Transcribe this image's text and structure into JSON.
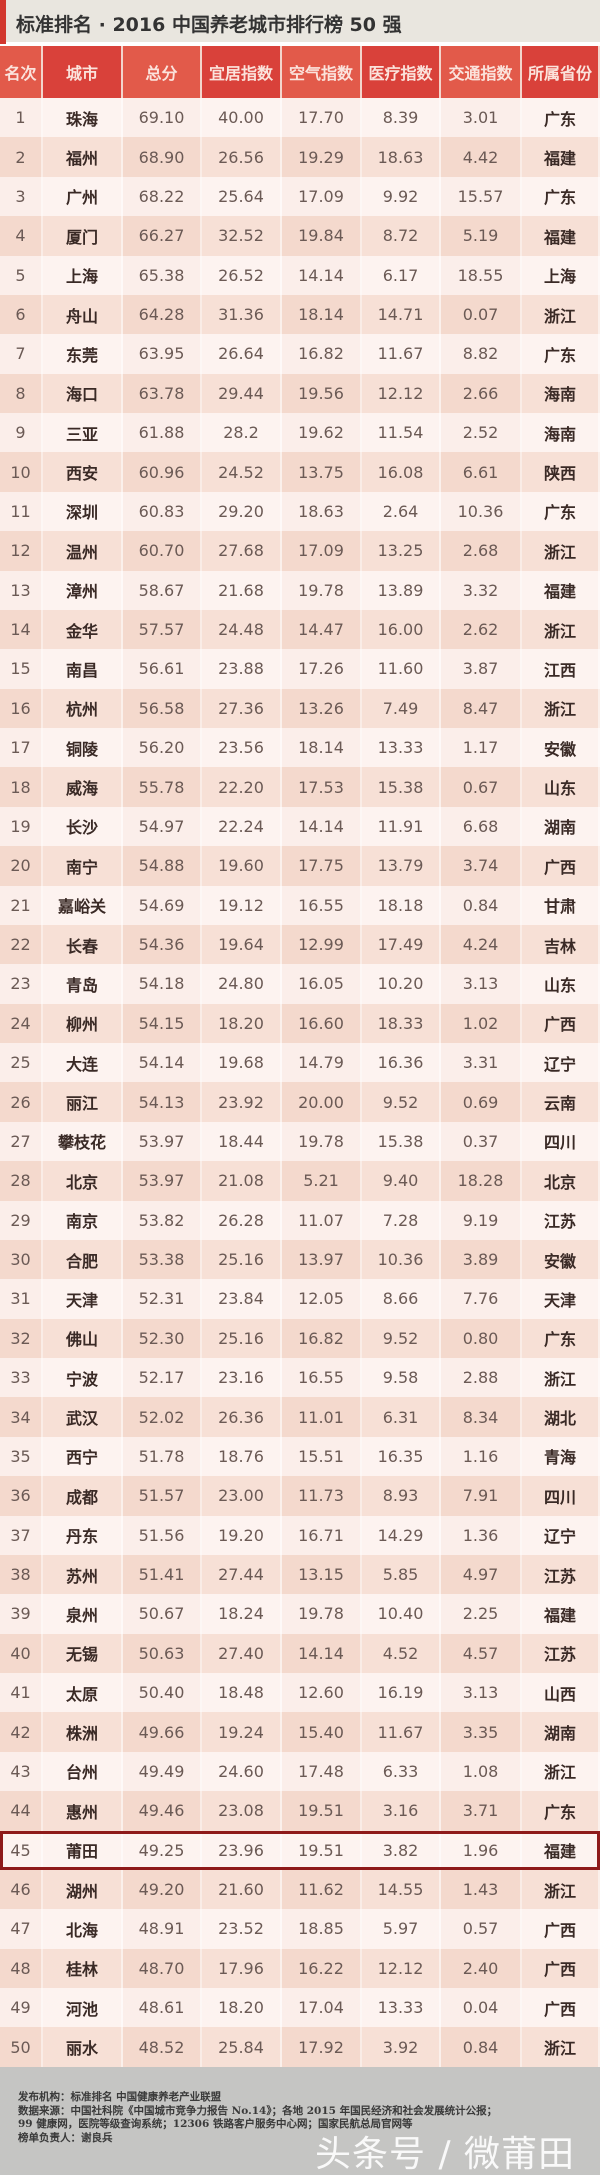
{
  "title": "标准排名 · 2016 中国养老城市排行榜 50 强",
  "headers": [
    "名次",
    "城市",
    "总分",
    "宜居指数",
    "空气指数",
    "医疗指数",
    "交通指数",
    "所属省份"
  ],
  "colors": {
    "header_red": "#d9413a",
    "header_red_alt": "#e25a4a",
    "row_light": "#fbeeea",
    "row_dark": "#f4d9cd",
    "highlight_border": "#8e1a1a",
    "footer_bg": "#c5c5c3"
  },
  "highlighted_rank": "45",
  "rows": [
    [
      "1",
      "珠海",
      "69.10",
      "40.00",
      "17.70",
      "8.39",
      "3.01",
      "广东"
    ],
    [
      "2",
      "福州",
      "68.90",
      "26.56",
      "19.29",
      "18.63",
      "4.42",
      "福建"
    ],
    [
      "3",
      "广州",
      "68.22",
      "25.64",
      "17.09",
      "9.92",
      "15.57",
      "广东"
    ],
    [
      "4",
      "厦门",
      "66.27",
      "32.52",
      "19.84",
      "8.72",
      "5.19",
      "福建"
    ],
    [
      "5",
      "上海",
      "65.38",
      "26.52",
      "14.14",
      "6.17",
      "18.55",
      "上海"
    ],
    [
      "6",
      "舟山",
      "64.28",
      "31.36",
      "18.14",
      "14.71",
      "0.07",
      "浙江"
    ],
    [
      "7",
      "东莞",
      "63.95",
      "26.64",
      "16.82",
      "11.67",
      "8.82",
      "广东"
    ],
    [
      "8",
      "海口",
      "63.78",
      "29.44",
      "19.56",
      "12.12",
      "2.66",
      "海南"
    ],
    [
      "9",
      "三亚",
      "61.88",
      "28.2",
      "19.62",
      "11.54",
      "2.52",
      "海南"
    ],
    [
      "10",
      "西安",
      "60.96",
      "24.52",
      "13.75",
      "16.08",
      "6.61",
      "陕西"
    ],
    [
      "11",
      "深圳",
      "60.83",
      "29.20",
      "18.63",
      "2.64",
      "10.36",
      "广东"
    ],
    [
      "12",
      "温州",
      "60.70",
      "27.68",
      "17.09",
      "13.25",
      "2.68",
      "浙江"
    ],
    [
      "13",
      "漳州",
      "58.67",
      "21.68",
      "19.78",
      "13.89",
      "3.32",
      "福建"
    ],
    [
      "14",
      "金华",
      "57.57",
      "24.48",
      "14.47",
      "16.00",
      "2.62",
      "浙江"
    ],
    [
      "15",
      "南昌",
      "56.61",
      "23.88",
      "17.26",
      "11.60",
      "3.87",
      "江西"
    ],
    [
      "16",
      "杭州",
      "56.58",
      "27.36",
      "13.26",
      "7.49",
      "8.47",
      "浙江"
    ],
    [
      "17",
      "铜陵",
      "56.20",
      "23.56",
      "18.14",
      "13.33",
      "1.17",
      "安徽"
    ],
    [
      "18",
      "威海",
      "55.78",
      "22.20",
      "17.53",
      "15.38",
      "0.67",
      "山东"
    ],
    [
      "19",
      "长沙",
      "54.97",
      "22.24",
      "14.14",
      "11.91",
      "6.68",
      "湖南"
    ],
    [
      "20",
      "南宁",
      "54.88",
      "19.60",
      "17.75",
      "13.79",
      "3.74",
      "广西"
    ],
    [
      "21",
      "嘉峪关",
      "54.69",
      "19.12",
      "16.55",
      "18.18",
      "0.84",
      "甘肃"
    ],
    [
      "22",
      "长春",
      "54.36",
      "19.64",
      "12.99",
      "17.49",
      "4.24",
      "吉林"
    ],
    [
      "23",
      "青岛",
      "54.18",
      "24.80",
      "16.05",
      "10.20",
      "3.13",
      "山东"
    ],
    [
      "24",
      "柳州",
      "54.15",
      "18.20",
      "16.60",
      "18.33",
      "1.02",
      "广西"
    ],
    [
      "25",
      "大连",
      "54.14",
      "19.68",
      "14.79",
      "16.36",
      "3.31",
      "辽宁"
    ],
    [
      "26",
      "丽江",
      "54.13",
      "23.92",
      "20.00",
      "9.52",
      "0.69",
      "云南"
    ],
    [
      "27",
      "攀枝花",
      "53.97",
      "18.44",
      "19.78",
      "15.38",
      "0.37",
      "四川"
    ],
    [
      "28",
      "北京",
      "53.97",
      "21.08",
      "5.21",
      "9.40",
      "18.28",
      "北京"
    ],
    [
      "29",
      "南京",
      "53.82",
      "26.28",
      "11.07",
      "7.28",
      "9.19",
      "江苏"
    ],
    [
      "30",
      "合肥",
      "53.38",
      "25.16",
      "13.97",
      "10.36",
      "3.89",
      "安徽"
    ],
    [
      "31",
      "天津",
      "52.31",
      "23.84",
      "12.05",
      "8.66",
      "7.76",
      "天津"
    ],
    [
      "32",
      "佛山",
      "52.30",
      "25.16",
      "16.82",
      "9.52",
      "0.80",
      "广东"
    ],
    [
      "33",
      "宁波",
      "52.17",
      "23.16",
      "16.55",
      "9.58",
      "2.88",
      "浙江"
    ],
    [
      "34",
      "武汉",
      "52.02",
      "26.36",
      "11.01",
      "6.31",
      "8.34",
      "湖北"
    ],
    [
      "35",
      "西宁",
      "51.78",
      "18.76",
      "15.51",
      "16.35",
      "1.16",
      "青海"
    ],
    [
      "36",
      "成都",
      "51.57",
      "23.00",
      "11.73",
      "8.93",
      "7.91",
      "四川"
    ],
    [
      "37",
      "丹东",
      "51.56",
      "19.20",
      "16.71",
      "14.29",
      "1.36",
      "辽宁"
    ],
    [
      "38",
      "苏州",
      "51.41",
      "27.44",
      "13.15",
      "5.85",
      "4.97",
      "江苏"
    ],
    [
      "39",
      "泉州",
      "50.67",
      "18.24",
      "19.78",
      "10.40",
      "2.25",
      "福建"
    ],
    [
      "40",
      "无锡",
      "50.63",
      "27.40",
      "14.14",
      "4.52",
      "4.57",
      "江苏"
    ],
    [
      "41",
      "太原",
      "50.40",
      "18.48",
      "12.60",
      "16.19",
      "3.13",
      "山西"
    ],
    [
      "42",
      "株洲",
      "49.66",
      "19.24",
      "15.40",
      "11.67",
      "3.35",
      "湖南"
    ],
    [
      "43",
      "台州",
      "49.49",
      "24.60",
      "17.48",
      "6.33",
      "1.08",
      "浙江"
    ],
    [
      "44",
      "惠州",
      "49.46",
      "23.08",
      "19.51",
      "3.16",
      "3.71",
      "广东"
    ],
    [
      "45",
      "莆田",
      "49.25",
      "23.96",
      "19.51",
      "3.82",
      "1.96",
      "福建"
    ],
    [
      "46",
      "湖州",
      "49.20",
      "21.60",
      "11.62",
      "14.55",
      "1.43",
      "浙江"
    ],
    [
      "47",
      "北海",
      "48.91",
      "23.52",
      "18.85",
      "5.97",
      "0.57",
      "广西"
    ],
    [
      "48",
      "桂林",
      "48.70",
      "17.96",
      "16.22",
      "12.12",
      "2.40",
      "广西"
    ],
    [
      "49",
      "河池",
      "48.61",
      "18.20",
      "17.04",
      "13.33",
      "0.04",
      "广西"
    ],
    [
      "50",
      "丽水",
      "48.52",
      "25.84",
      "17.92",
      "3.92",
      "0.84",
      "浙江"
    ]
  ],
  "footer": {
    "lines": [
      "发布机构：标准排名 中国健康养老产业联盟",
      "数据来源：中国社科院《中国城市竞争力报告 No.14》；各地 2015 年国民经济和社会发展统计公报；",
      "99 健康网，医院等级查询系统；12306 铁路客户服务中心网；国家民航总局官网等",
      "榜单负责人：谢良兵"
    ],
    "watermark": "头条号 / 微莆田"
  }
}
